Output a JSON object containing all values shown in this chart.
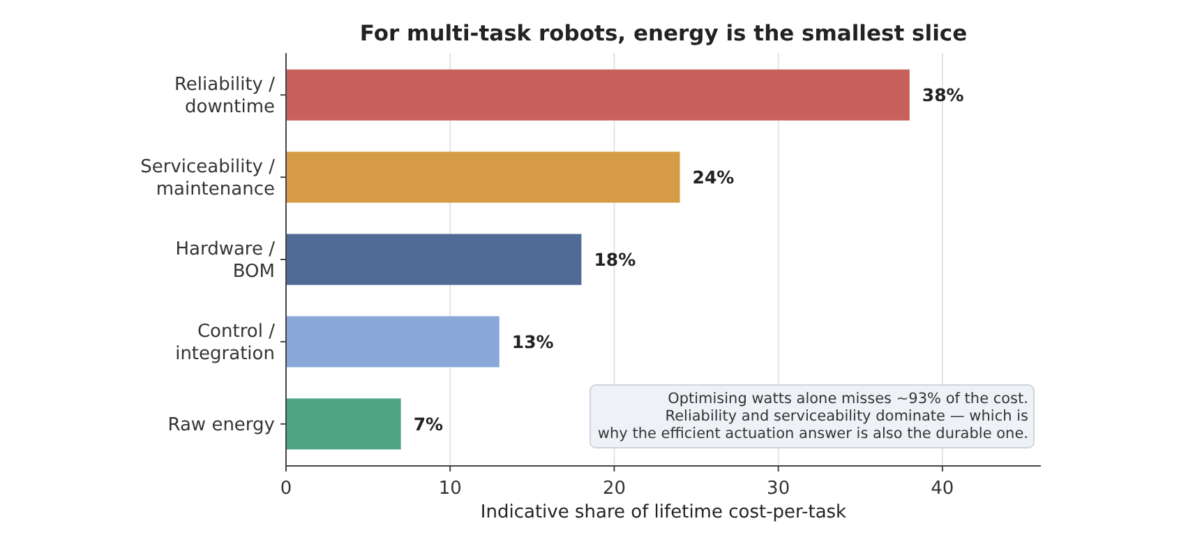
{
  "chart_data": {
    "type": "bar",
    "orientation": "horizontal",
    "title": "For multi-task robots, energy is the smallest slice",
    "xlabel": "Indicative share of lifetime cost-per-task",
    "categories": [
      "Reliability /\ndowntime",
      "Serviceability /\nmaintenance",
      "Hardware /\nBOM",
      "Control /\nintegration",
      "Raw energy"
    ],
    "values": [
      38,
      24,
      18,
      13,
      7
    ],
    "colors": [
      "#c8605c",
      "#d69b47",
      "#4f6b96",
      "#89a8d8",
      "#4ea583"
    ],
    "value_labels": [
      "38%",
      "24%",
      "18%",
      "13%",
      "7%"
    ],
    "xlim": [
      0,
      46
    ],
    "xticks": [
      0,
      10,
      20,
      30,
      40
    ],
    "grid": "x",
    "annotations": [
      "Optimising watts alone misses ~93% of the cost.\nReliability and serviceability dominate — which is\nwhy the efficient actuation answer is also the durable one."
    ]
  }
}
